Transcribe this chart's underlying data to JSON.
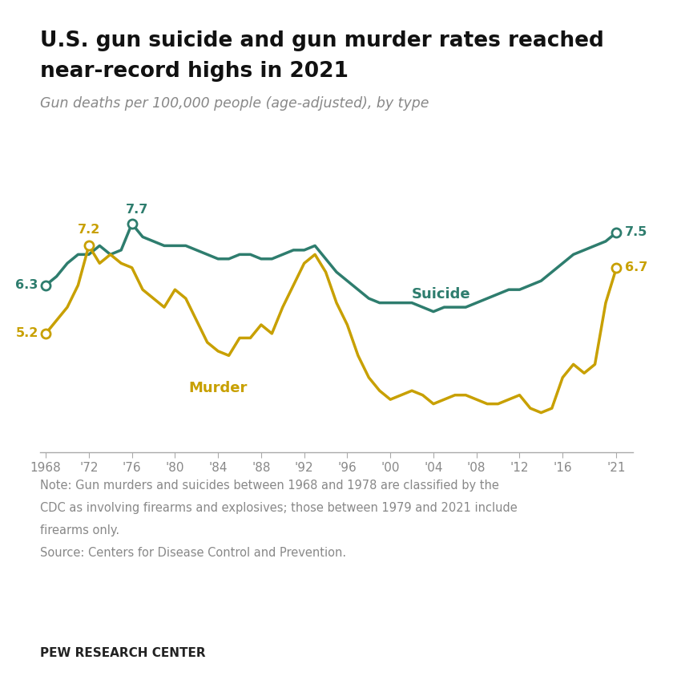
{
  "title_line1": "U.S. gun suicide and gun murder rates reached",
  "title_line2": "near-record highs in 2021",
  "subtitle": "Gun deaths per 100,000 people (age-adjusted), by type",
  "note_line1": "Note: Gun murders and suicides between 1968 and 1978 are classified by the",
  "note_line2": "CDC as involving firearms and explosives; those between 1979 and 2021 include",
  "note_line3": "firearms only.",
  "note_line4": "Source: Centers for Disease Control and Prevention.",
  "footer": "PEW RESEARCH CENTER",
  "suicide_color": "#2E7D6E",
  "murder_color": "#C8A000",
  "background_color": "#FFFFFF",
  "years": [
    1968,
    1969,
    1970,
    1971,
    1972,
    1973,
    1974,
    1975,
    1976,
    1977,
    1978,
    1979,
    1980,
    1981,
    1982,
    1983,
    1984,
    1985,
    1986,
    1987,
    1988,
    1989,
    1990,
    1991,
    1992,
    1993,
    1994,
    1995,
    1996,
    1997,
    1998,
    1999,
    2000,
    2001,
    2002,
    2003,
    2004,
    2005,
    2006,
    2007,
    2008,
    2009,
    2010,
    2011,
    2012,
    2013,
    2014,
    2015,
    2016,
    2017,
    2018,
    2019,
    2020,
    2021
  ],
  "suicide": [
    6.3,
    6.5,
    6.8,
    7.0,
    7.0,
    7.2,
    7.0,
    7.1,
    7.7,
    7.4,
    7.3,
    7.2,
    7.2,
    7.2,
    7.1,
    7.0,
    6.9,
    6.9,
    7.0,
    7.0,
    6.9,
    6.9,
    7.0,
    7.1,
    7.1,
    7.2,
    6.9,
    6.6,
    6.4,
    6.2,
    6.0,
    5.9,
    5.9,
    5.9,
    5.9,
    5.8,
    5.7,
    5.8,
    5.8,
    5.8,
    5.9,
    6.0,
    6.1,
    6.2,
    6.2,
    6.3,
    6.4,
    6.6,
    6.8,
    7.0,
    7.1,
    7.2,
    7.3,
    7.5
  ],
  "murder": [
    5.2,
    5.5,
    5.8,
    6.3,
    7.2,
    6.8,
    7.0,
    6.8,
    6.7,
    6.2,
    6.0,
    5.8,
    6.2,
    6.0,
    5.5,
    5.0,
    4.8,
    4.7,
    5.1,
    5.1,
    5.4,
    5.2,
    5.8,
    6.3,
    6.8,
    7.0,
    6.6,
    5.9,
    5.4,
    4.7,
    4.2,
    3.9,
    3.7,
    3.8,
    3.9,
    3.8,
    3.6,
    3.7,
    3.8,
    3.8,
    3.7,
    3.6,
    3.6,
    3.7,
    3.8,
    3.5,
    3.4,
    3.5,
    4.2,
    4.5,
    4.3,
    4.5,
    5.9,
    6.7
  ],
  "xlim": [
    1967.5,
    2022.5
  ],
  "ylim": [
    2.5,
    9.0
  ],
  "xticks": [
    1968,
    1972,
    1976,
    1980,
    1984,
    1988,
    1992,
    1996,
    2000,
    2004,
    2008,
    2012,
    2016,
    2021
  ],
  "xtick_labels": [
    "1968",
    "'72",
    "'76",
    "'80",
    "'84",
    "'88",
    "'92",
    "'96",
    "'00",
    "'04",
    "'08",
    "'12",
    "'16",
    "'21"
  ]
}
